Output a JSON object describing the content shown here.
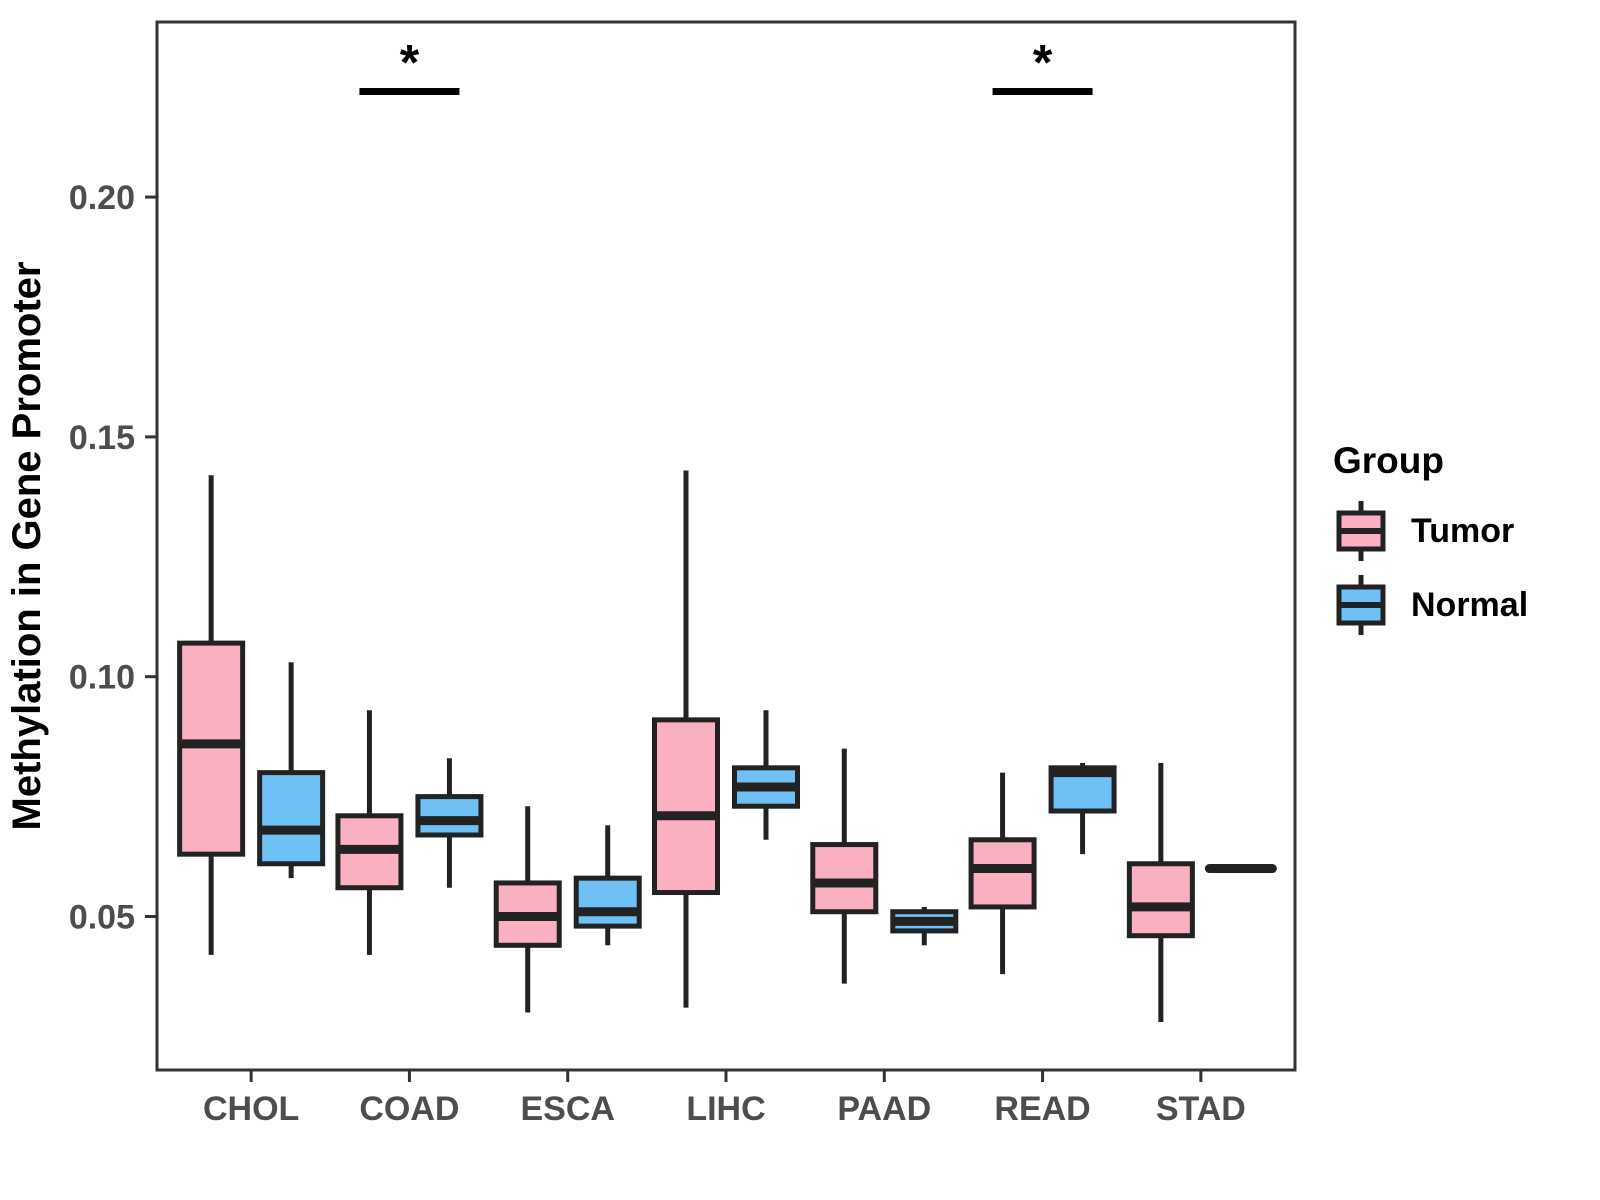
{
  "legend": {
    "title": "Group",
    "items": [
      {
        "label": "Tumor",
        "color_key": "tumor"
      },
      {
        "label": "Normal",
        "color_key": "normal"
      }
    ]
  },
  "chart_data": {
    "type": "boxplot",
    "title": "",
    "xlabel": "",
    "ylabel": "Methylation in Gene Promoter",
    "categories": [
      "CHOL",
      "COAD",
      "ESCA",
      "LIHC",
      "PAAD",
      "READ",
      "STAD"
    ],
    "groups": [
      "Tumor",
      "Normal"
    ],
    "y_ticks": [
      0.05,
      0.1,
      0.15,
      0.2
    ],
    "ylim": [
      0.018,
      0.2365
    ],
    "grid": false,
    "legend_position": "right",
    "colors": {
      "tumor": "#FAB0C0",
      "normal": "#6EC0F5",
      "stroke": "#222222",
      "axis_text": "#4D4D4D",
      "panel_border": "#333333",
      "significance": "#000000"
    },
    "boxes": [
      {
        "category": "CHOL",
        "group": "Tumor",
        "low": 0.042,
        "q1": 0.063,
        "median": 0.086,
        "q3": 0.107,
        "high": 0.142
      },
      {
        "category": "CHOL",
        "group": "Normal",
        "low": 0.058,
        "q1": 0.061,
        "median": 0.068,
        "q3": 0.08,
        "high": 0.103
      },
      {
        "category": "COAD",
        "group": "Tumor",
        "low": 0.042,
        "q1": 0.056,
        "median": 0.064,
        "q3": 0.071,
        "high": 0.093
      },
      {
        "category": "COAD",
        "group": "Normal",
        "low": 0.056,
        "q1": 0.067,
        "median": 0.07,
        "q3": 0.075,
        "high": 0.083
      },
      {
        "category": "ESCA",
        "group": "Tumor",
        "low": 0.03,
        "q1": 0.044,
        "median": 0.05,
        "q3": 0.057,
        "high": 0.073
      },
      {
        "category": "ESCA",
        "group": "Normal",
        "low": 0.044,
        "q1": 0.048,
        "median": 0.051,
        "q3": 0.058,
        "high": 0.069
      },
      {
        "category": "LIHC",
        "group": "Tumor",
        "low": 0.031,
        "q1": 0.055,
        "median": 0.071,
        "q3": 0.091,
        "high": 0.143
      },
      {
        "category": "LIHC",
        "group": "Normal",
        "low": 0.066,
        "q1": 0.073,
        "median": 0.077,
        "q3": 0.081,
        "high": 0.093
      },
      {
        "category": "PAAD",
        "group": "Tumor",
        "low": 0.036,
        "q1": 0.051,
        "median": 0.057,
        "q3": 0.065,
        "high": 0.085
      },
      {
        "category": "PAAD",
        "group": "Normal",
        "low": 0.044,
        "q1": 0.047,
        "median": 0.049,
        "q3": 0.051,
        "high": 0.052
      },
      {
        "category": "READ",
        "group": "Tumor",
        "low": 0.038,
        "q1": 0.052,
        "median": 0.06,
        "q3": 0.066,
        "high": 0.08
      },
      {
        "category": "READ",
        "group": "Normal",
        "low": 0.063,
        "q1": 0.072,
        "median": 0.08,
        "q3": 0.081,
        "high": 0.082
      },
      {
        "category": "STAD",
        "group": "Tumor",
        "low": 0.028,
        "q1": 0.046,
        "median": 0.052,
        "q3": 0.061,
        "high": 0.082
      },
      {
        "category": "STAD",
        "group": "Normal",
        "median": 0.06,
        "dash_only": true
      }
    ],
    "significance": [
      {
        "category": "COAD",
        "label": "*",
        "bar_y": 0.222
      },
      {
        "category": "READ",
        "label": "*",
        "bar_y": 0.222
      }
    ]
  }
}
